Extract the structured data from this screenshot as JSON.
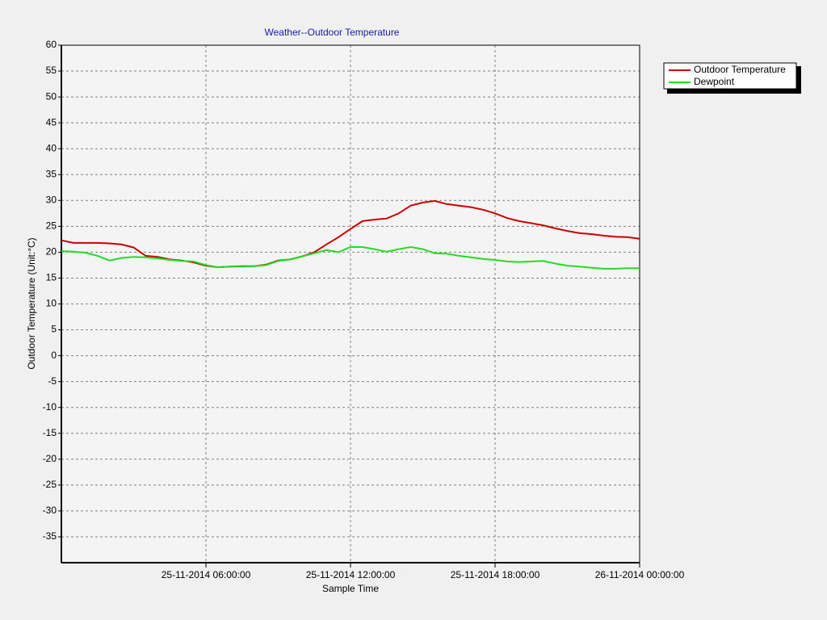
{
  "chart_data": {
    "type": "line",
    "title": "Weather--Outdoor Temperature",
    "x_label": "Sample Time",
    "y_label": "Outdoor Temperature (Unit:°C)",
    "x": [
      "2014-11-25T00:00",
      "2014-11-25T00:30",
      "2014-11-25T01:00",
      "2014-11-25T01:30",
      "2014-11-25T02:00",
      "2014-11-25T02:30",
      "2014-11-25T03:00",
      "2014-11-25T03:30",
      "2014-11-25T04:00",
      "2014-11-25T04:30",
      "2014-11-25T05:00",
      "2014-11-25T05:30",
      "2014-11-25T06:00",
      "2014-11-25T06:30",
      "2014-11-25T07:00",
      "2014-11-25T07:30",
      "2014-11-25T08:00",
      "2014-11-25T08:30",
      "2014-11-25T09:00",
      "2014-11-25T09:30",
      "2014-11-25T10:00",
      "2014-11-25T10:30",
      "2014-11-25T11:00",
      "2014-11-25T11:30",
      "2014-11-25T12:00",
      "2014-11-25T12:30",
      "2014-11-25T13:00",
      "2014-11-25T13:30",
      "2014-11-25T14:00",
      "2014-11-25T14:30",
      "2014-11-25T15:00",
      "2014-11-25T15:30",
      "2014-11-25T16:00",
      "2014-11-25T16:30",
      "2014-11-25T17:00",
      "2014-11-25T17:30",
      "2014-11-25T18:00",
      "2014-11-25T18:30",
      "2014-11-25T19:00",
      "2014-11-25T19:30",
      "2014-11-25T20:00",
      "2014-11-25T20:30",
      "2014-11-25T21:00",
      "2014-11-25T21:30",
      "2014-11-25T22:00",
      "2014-11-25T22:30",
      "2014-11-25T23:00",
      "2014-11-25T23:30",
      "2014-11-26T00:00"
    ],
    "series": [
      {
        "name": "Outdoor Temperature",
        "color": "#cc0000",
        "values": [
          22.3,
          21.8,
          21.8,
          21.8,
          21.7,
          21.5,
          20.9,
          19.3,
          19.1,
          18.6,
          18.4,
          18.0,
          17.4,
          17.1,
          17.2,
          17.3,
          17.3,
          17.6,
          18.4,
          18.6,
          19.2,
          20.0,
          21.5,
          22.9,
          24.5,
          26.0,
          26.3,
          26.5,
          27.5,
          29.0,
          29.6,
          29.9,
          29.3,
          29.0,
          28.7,
          28.2,
          27.5,
          26.6,
          26.0,
          25.6,
          25.2,
          24.6,
          24.1,
          23.7,
          23.5,
          23.2,
          23.0,
          22.9,
          22.6
        ]
      },
      {
        "name": "Dewpoint",
        "color": "#22dd22",
        "values": [
          20.2,
          20.1,
          19.9,
          19.3,
          18.4,
          18.9,
          19.1,
          19.0,
          18.8,
          18.5,
          18.3,
          18.2,
          17.5,
          17.1,
          17.2,
          17.2,
          17.3,
          17.5,
          18.3,
          18.6,
          19.2,
          19.8,
          20.4,
          20.0,
          21.0,
          21.0,
          20.6,
          20.1,
          20.6,
          21.0,
          20.6,
          19.8,
          19.7,
          19.3,
          19.0,
          18.7,
          18.5,
          18.2,
          18.1,
          18.2,
          18.3,
          17.8,
          17.4,
          17.2,
          17.0,
          16.8,
          16.8,
          16.9,
          16.9
        ]
      }
    ],
    "xlim": [
      "2014-11-25T00:00",
      "2014-11-26T00:00"
    ],
    "xticks": [
      {
        "value": "2014-11-25T06:00",
        "label": "25-11-2014 06:00:00"
      },
      {
        "value": "2014-11-25T12:00",
        "label": "25-11-2014 12:00:00"
      },
      {
        "value": "2014-11-25T18:00",
        "label": "25-11-2014 18:00:00"
      },
      {
        "value": "2014-11-26T00:00",
        "label": "26-11-2014 00:00:00"
      }
    ],
    "ylim": [
      -40,
      60
    ],
    "yticks": [
      60,
      55,
      50,
      45,
      40,
      35,
      30,
      25,
      20,
      15,
      10,
      5,
      0,
      -5,
      -10,
      -15,
      -20,
      -25,
      -30,
      -35
    ],
    "grid": true,
    "legend": "upper-right"
  }
}
